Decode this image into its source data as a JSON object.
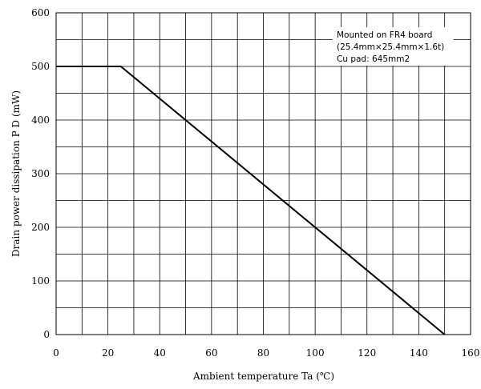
{
  "chart_data": {
    "type": "line",
    "title": "",
    "xlabel": "Ambient temperature  Ta (℃)",
    "ylabel": "Drain power dissipation    P D  (mW)",
    "xlim": [
      0,
      160
    ],
    "ylim": [
      0,
      600
    ],
    "x_ticks": [
      0,
      20,
      40,
      60,
      80,
      100,
      120,
      140,
      160
    ],
    "y_ticks": [
      0,
      100,
      200,
      300,
      400,
      500,
      600
    ],
    "x_grid_step": 10,
    "y_grid_step": 50,
    "grid": true,
    "series": [
      {
        "x": [
          0,
          25,
          150
        ],
        "y": [
          500,
          500,
          0
        ]
      }
    ],
    "annotations": [
      "Mounted on FR4 board",
      "(25.4mm×25.4mm×1.6t)",
      "Cu pad: 645mm2"
    ],
    "annotation_placement": "top-right",
    "colors": {
      "line": "#000000",
      "grid": "#000000"
    }
  }
}
